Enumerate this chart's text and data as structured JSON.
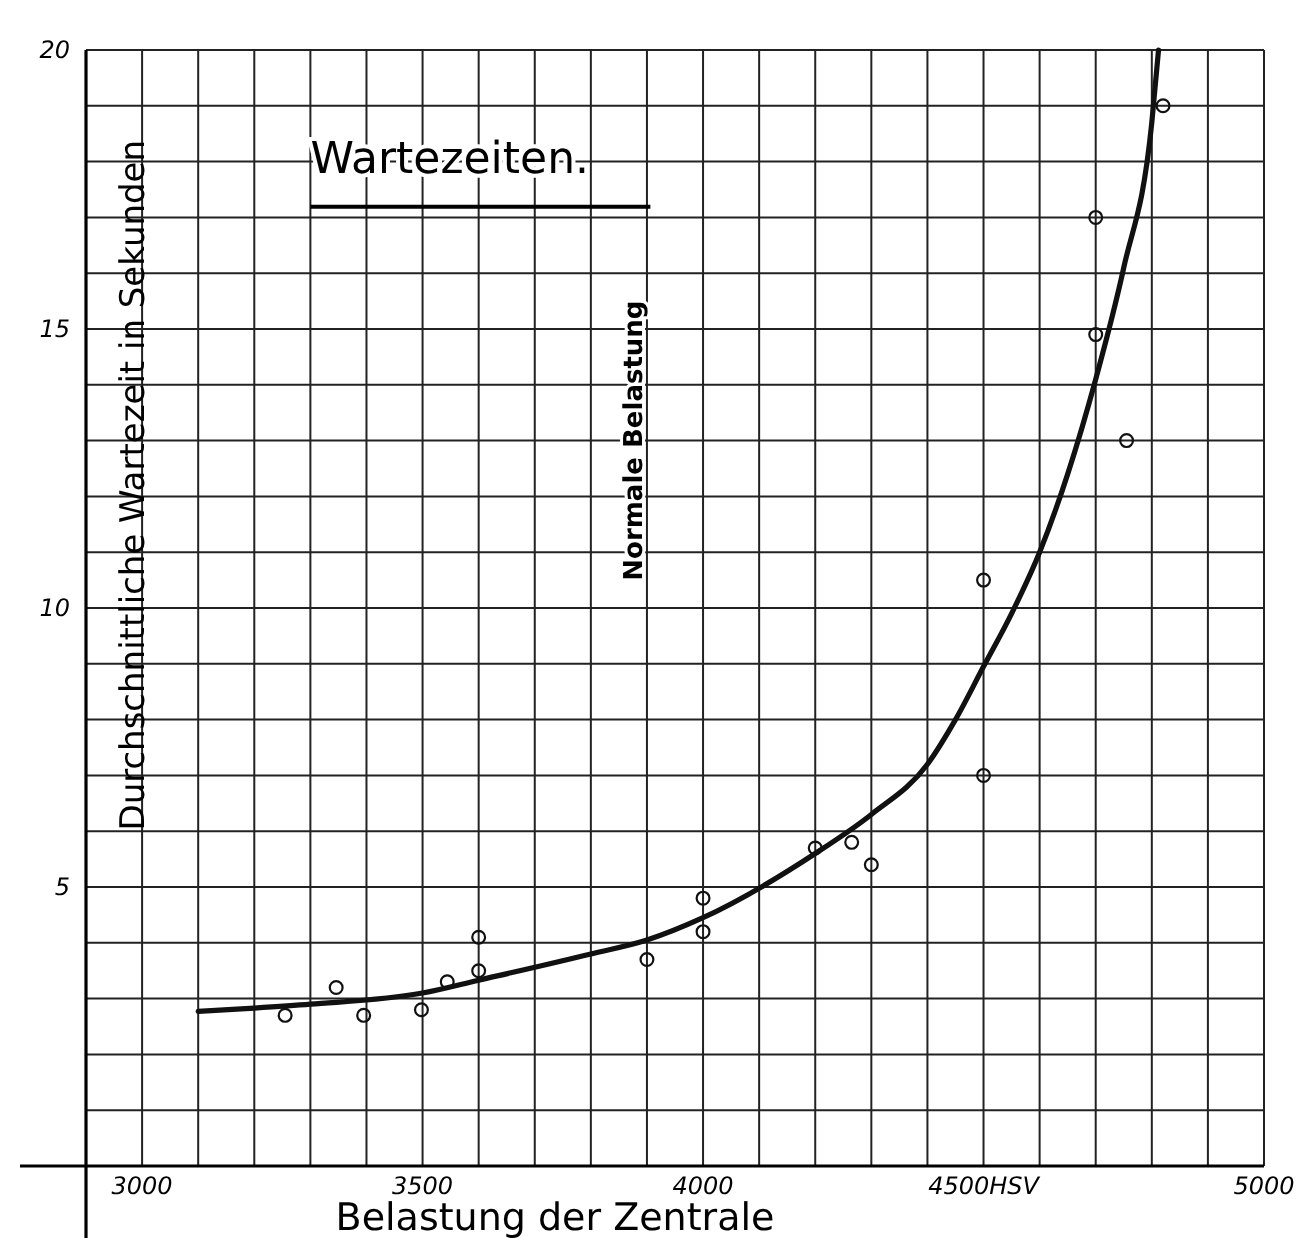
{
  "chart_data": {
    "type": "scatter",
    "title": "Wartezeiten.",
    "xlabel": "Belastung der Zentrale",
    "ylabel": "Durchschnittliche Wartezeit in Sekunden",
    "xlim": [
      2900,
      5000
    ],
    "ylim": [
      0,
      20
    ],
    "xticks": [
      {
        "value": 2900,
        "label": null
      },
      {
        "value": 3000,
        "label": "3000"
      },
      {
        "value": 3100,
        "label": null
      },
      {
        "value": 3200,
        "label": null
      },
      {
        "value": 3300,
        "label": null
      },
      {
        "value": 3400,
        "label": null
      },
      {
        "value": 3500,
        "label": "3500"
      },
      {
        "value": 3600,
        "label": null
      },
      {
        "value": 3700,
        "label": null
      },
      {
        "value": 3800,
        "label": null
      },
      {
        "value": 3900,
        "label": null
      },
      {
        "value": 4000,
        "label": "4000"
      },
      {
        "value": 4100,
        "label": null
      },
      {
        "value": 4200,
        "label": null
      },
      {
        "value": 4300,
        "label": null
      },
      {
        "value": 4400,
        "label": null
      },
      {
        "value": 4500,
        "label": "4500HSV"
      },
      {
        "value": 4600,
        "label": null
      },
      {
        "value": 4700,
        "label": null
      },
      {
        "value": 4800,
        "label": null
      },
      {
        "value": 4900,
        "label": null
      },
      {
        "value": 5000,
        "label": "5000"
      }
    ],
    "yticks": [
      {
        "value": 1,
        "label": null
      },
      {
        "value": 2,
        "label": null
      },
      {
        "value": 3,
        "label": null
      },
      {
        "value": 4,
        "label": null
      },
      5,
      {
        "value": 6,
        "label": null
      },
      {
        "value": 7,
        "label": null
      },
      {
        "value": 8,
        "label": null
      },
      {
        "value": 9,
        "label": null
      },
      10,
      {
        "value": 11,
        "label": null
      },
      {
        "value": 12,
        "label": null
      },
      {
        "value": 13,
        "label": null
      },
      {
        "value": 14,
        "label": null
      },
      15,
      {
        "value": 16,
        "label": null
      },
      {
        "value": 17,
        "label": null
      },
      {
        "value": 18,
        "label": null
      },
      {
        "value": 19,
        "label": null
      },
      20
    ],
    "grid": true,
    "marker": "circle",
    "series": [
      {
        "color": "#111111",
        "x": [
          3255,
          3346,
          3395,
          3498,
          3544,
          3600,
          3600,
          3900,
          4000,
          4000,
          4200,
          4265,
          4300,
          4500,
          4500,
          4700,
          4700,
          4755,
          4820
        ],
        "values": [
          2.7,
          3.2,
          2.7,
          2.8,
          3.3,
          4.1,
          3.5,
          3.7,
          4.8,
          4.2,
          5.7,
          5.8,
          5.4,
          7.0,
          10.5,
          14.9,
          17.0,
          13.0,
          19.0
        ]
      },
      {
        "type": "line",
        "color": "#111111",
        "marker": "none",
        "line_style": "solid",
        "x": [
          3100,
          3200,
          3300,
          3500,
          3600,
          3800,
          3900,
          4000,
          4200,
          4300,
          4400,
          4450,
          4500,
          4550,
          4600,
          4650,
          4700,
          4750,
          4800,
          4812
        ],
        "values": [
          2.77,
          2.83,
          2.9,
          3.1,
          3.33,
          3.8,
          4.05,
          4.45,
          5.6,
          6.3,
          7.2,
          8.0,
          8.95,
          9.9,
          11.0,
          12.4,
          14.1,
          16.1,
          18.7,
          20
        ]
      }
    ],
    "annotations": [
      "Normale Belastung"
    ]
  }
}
